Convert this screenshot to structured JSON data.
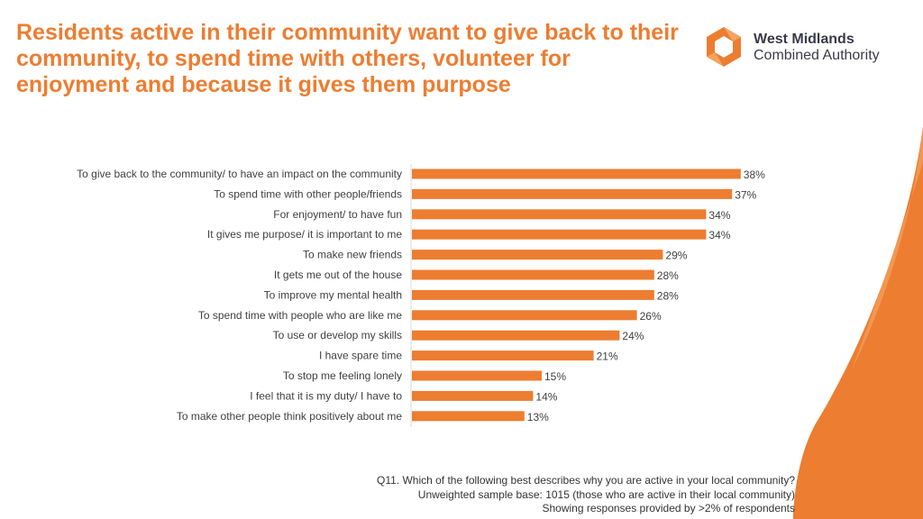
{
  "title": "Residents active in their community want to give back to their community, to spend time with others, volunteer for enjoyment and because it gives them purpose",
  "logo": {
    "line1": "West Midlands",
    "line2": "Combined Authority",
    "mark_icon": "hexagon-petal-icon",
    "brand_color": "#ED7D31"
  },
  "colors": {
    "accent": "#ED7D31",
    "bar": "#ED7D31",
    "text": "#404040"
  },
  "chart_data": {
    "type": "bar",
    "orientation": "horizontal",
    "title": "",
    "xlabel": "",
    "ylabel": "",
    "xlim": [
      0,
      40
    ],
    "grid": false,
    "legend": "none",
    "categories": [
      "To give back to the community/ to have an impact on the community",
      "To spend time with other people/friends",
      "For enjoyment/ to have fun",
      "It gives me purpose/ it is important to me",
      "To make new friends",
      "It gets me out of the house",
      "To improve my mental health",
      "To spend time with people who are like me",
      "To use or develop my skills",
      "I have spare time",
      "To stop me feeling lonely",
      "I feel that it is my duty/ I have to",
      "To make other people think positively about me"
    ],
    "values": [
      38,
      37,
      34,
      34,
      29,
      28,
      28,
      26,
      24,
      21,
      15,
      14,
      13
    ],
    "value_labels": [
      "38%",
      "37%",
      "34%",
      "34%",
      "29%",
      "28%",
      "28%",
      "26%",
      "24%",
      "21%",
      "15%",
      "14%",
      "13%"
    ]
  },
  "footnote": {
    "line1": "Q11. Which of the following best describes why you are active in your local community?",
    "line2": "Unweighted sample base: 1015 (those who are active in their local community)",
    "line3": "Showing responses provided by >2% of respondents"
  }
}
